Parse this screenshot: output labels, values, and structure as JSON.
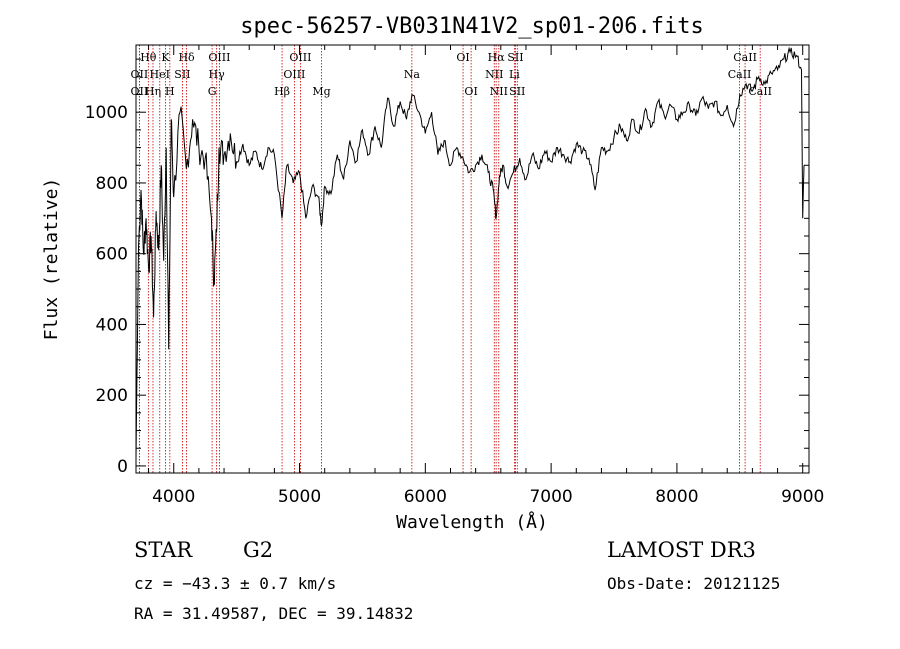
{
  "chart_data": {
    "type": "line",
    "title": "spec-56257-VB031N41V2_sp01-206.fits",
    "xlabel": "Wavelength (Å)",
    "ylabel": "Flux (relative)",
    "xlim": [
      3700,
      9050
    ],
    "ylim": [
      -20,
      1190
    ],
    "xticks": [
      4000,
      5000,
      6000,
      7000,
      8000,
      9000
    ],
    "yticks": [
      0,
      200,
      400,
      600,
      800,
      1000
    ],
    "series": [
      {
        "name": "spectrum",
        "x": [
          3700,
          3720,
          3740,
          3760,
          3780,
          3800,
          3820,
          3840,
          3860,
          3880,
          3900,
          3920,
          3940,
          3960,
          3980,
          4000,
          4050,
          4100,
          4150,
          4200,
          4250,
          4300,
          4320,
          4340,
          4360,
          4400,
          4450,
          4500,
          4550,
          4600,
          4650,
          4700,
          4750,
          4800,
          4861,
          4900,
          4950,
          5000,
          5050,
          5100,
          5150,
          5175,
          5200,
          5250,
          5300,
          5350,
          5400,
          5450,
          5500,
          5550,
          5600,
          5650,
          5700,
          5750,
          5800,
          5850,
          5893,
          5950,
          6000,
          6050,
          6100,
          6150,
          6200,
          6250,
          6300,
          6350,
          6400,
          6450,
          6500,
          6540,
          6563,
          6590,
          6620,
          6650,
          6700,
          6750,
          6800,
          6850,
          6900,
          6950,
          7000,
          7050,
          7100,
          7150,
          7200,
          7250,
          7300,
          7350,
          7400,
          7450,
          7500,
          7550,
          7600,
          7650,
          7700,
          7750,
          7800,
          7850,
          7900,
          7950,
          8000,
          8050,
          8100,
          8150,
          8200,
          8250,
          8300,
          8350,
          8400,
          8450,
          8500,
          8550,
          8600,
          8650,
          8700,
          8750,
          8800,
          8850,
          8900,
          8950,
          8990,
          9000,
          9010
        ],
        "values": [
          20,
          620,
          780,
          600,
          700,
          560,
          650,
          420,
          720,
          610,
          850,
          580,
          900,
          330,
          980,
          760,
          1000,
          840,
          980,
          900,
          870,
          700,
          520,
          660,
          900,
          880,
          940,
          860,
          910,
          850,
          890,
          840,
          900,
          880,
          700,
          850,
          800,
          830,
          700,
          790,
          760,
          680,
          790,
          770,
          880,
          810,
          920,
          860,
          950,
          880,
          960,
          900,
          1040,
          960,
          1030,
          980,
          1050,
          1000,
          940,
          1000,
          880,
          920,
          850,
          900,
          870,
          830,
          850,
          880,
          830,
          780,
          700,
          820,
          850,
          790,
          830,
          870,
          810,
          880,
          840,
          890,
          860,
          900,
          880,
          860,
          910,
          890,
          870,
          780,
          900,
          890,
          930,
          960,
          920,
          980,
          940,
          1010,
          960,
          1030,
          990,
          1020,
          980,
          1000,
          1020,
          990,
          1040,
          1010,
          1030,
          990,
          1020,
          960,
          1050,
          1080,
          1060,
          1100,
          1080,
          1110,
          1120,
          1150,
          1170,
          1160,
          1120,
          700,
          850
        ]
      }
    ],
    "lines": [
      {
        "name": "Hθ",
        "wl": 3798,
        "label": "Hθ",
        "row": 1
      },
      {
        "name": "OII",
        "wl": 3727,
        "label": "OII",
        "row": 2
      },
      {
        "name": "OII",
        "wl": 3727,
        "label": "OII",
        "row": 3
      },
      {
        "name": "Hη",
        "wl": 3835,
        "label": "Hη",
        "row": 3
      },
      {
        "name": "HeI",
        "wl": 3889,
        "label": "HeI",
        "row": 2
      },
      {
        "name": "K",
        "wl": 3934,
        "label": "K",
        "row": 1
      },
      {
        "name": "SII",
        "wl": 4069,
        "label": "SII",
        "row": 2
      },
      {
        "name": "H",
        "wl": 3969,
        "label": "H",
        "row": 3
      },
      {
        "name": "Hδ",
        "wl": 4102,
        "label": "Hδ",
        "row": 1
      },
      {
        "name": "OIII",
        "wl": 4363,
        "label": "OIII",
        "row": 1
      },
      {
        "name": "Hγ",
        "wl": 4341,
        "label": "Hγ",
        "row": 2
      },
      {
        "name": "G",
        "wl": 4305,
        "label": "G",
        "row": 3
      },
      {
        "name": "OIII",
        "wl": 5007,
        "label": "OIII",
        "row": 1
      },
      {
        "name": "OIII",
        "wl": 4959,
        "label": "OIII",
        "row": 2
      },
      {
        "name": "Hβ",
        "wl": 4861,
        "label": "Hβ",
        "row": 3
      },
      {
        "name": "Mg",
        "wl": 5175,
        "label": "Mg",
        "row": 3
      },
      {
        "name": "Na",
        "wl": 5893,
        "label": "Na",
        "row": 2
      },
      {
        "name": "OI",
        "wl": 6300,
        "label": "OI",
        "row": 1
      },
      {
        "name": "OI",
        "wl": 6364,
        "label": "OI",
        "row": 3
      },
      {
        "name": "Hα",
        "wl": 6563,
        "label": "Hα",
        "row": 1
      },
      {
        "name": "NII",
        "wl": 6548,
        "label": "NII",
        "row": 2
      },
      {
        "name": "NII",
        "wl": 6584,
        "label": "NII",
        "row": 3
      },
      {
        "name": "SII",
        "wl": 6717,
        "label": "SII",
        "row": 1
      },
      {
        "name": "Li",
        "wl": 6708,
        "label": "Li",
        "row": 2
      },
      {
        "name": "SII",
        "wl": 6731,
        "label": "SII",
        "row": 3
      },
      {
        "name": "CaII",
        "wl": 8542,
        "label": "CaII",
        "row": 1
      },
      {
        "name": "CaII",
        "wl": 8498,
        "label": "CaII",
        "row": 2
      },
      {
        "name": "CaII",
        "wl": 8662,
        "label": "CaII",
        "row": 3
      }
    ]
  },
  "info": {
    "object_class": "STAR",
    "subclass": "G2",
    "cz": "cz = −43.3 ± 0.7 km/s",
    "radec": "RA =  31.49587, DEC =  39.14832",
    "survey": "LAMOST DR3",
    "obs_date": "Obs-Date: 20121125"
  },
  "colors": {
    "line_marker": "#cc0000",
    "spectrum": "#000000"
  }
}
